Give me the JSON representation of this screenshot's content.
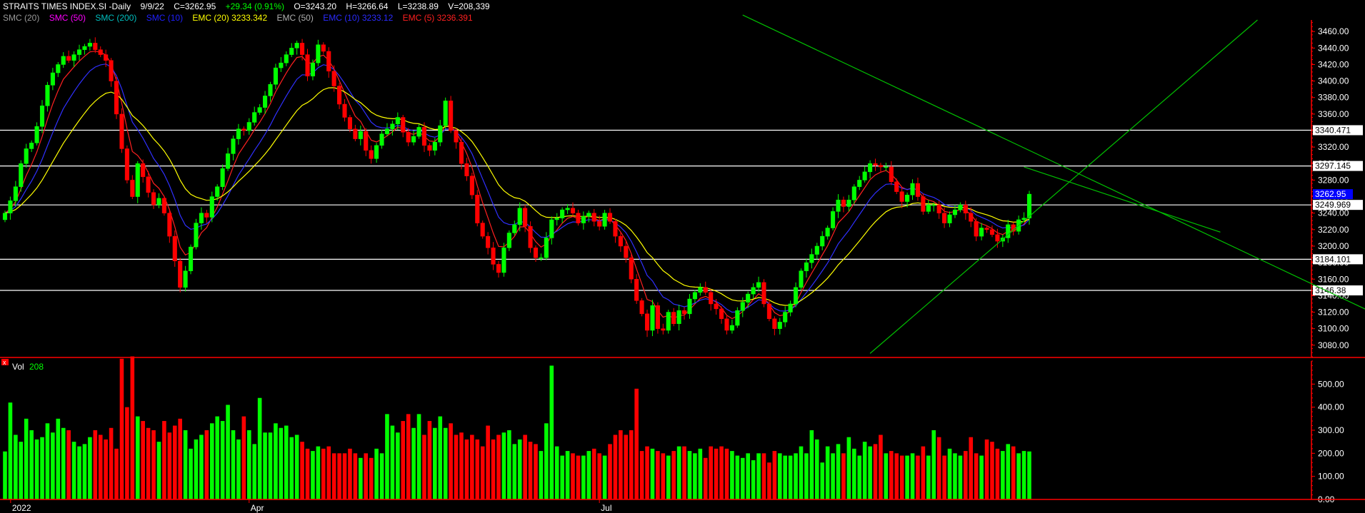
{
  "header": {
    "row1": [
      {
        "text": "STRAITS TIMES INDEX.SI -Daily",
        "color": "#ffffff"
      },
      {
        "text": "9/9/22",
        "color": "#ffffff"
      },
      {
        "text": "C=3262.95",
        "color": "#ffffff"
      },
      {
        "text": "+29.34 (0.91%)",
        "color": "#00ff00"
      },
      {
        "text": "O=3243.20",
        "color": "#ffffff"
      },
      {
        "text": "H=3266.64",
        "color": "#ffffff"
      },
      {
        "text": "L=3238.89",
        "color": "#ffffff"
      },
      {
        "text": "V=208,339",
        "color": "#ffffff"
      }
    ],
    "row2": [
      {
        "text": "SMC (20)",
        "color": "#9a9a9a"
      },
      {
        "text": "SMC (50)",
        "color": "#ff00ff"
      },
      {
        "text": "SMC (200)",
        "color": "#00bfbf"
      },
      {
        "text": "SMC (10)",
        "color": "#2020ff"
      },
      {
        "text": "EMC (20) 3233.342",
        "color": "#ffff00"
      },
      {
        "text": "EMC (50)",
        "color": "#b0b0b0"
      },
      {
        "text": "EMC (10) 3233.12",
        "color": "#2b2bff"
      },
      {
        "text": "EMC (5) 3236.391",
        "color": "#ff2020"
      }
    ],
    "vol_label": "Vol",
    "vol_value": "208"
  },
  "colors": {
    "up": "#00ff00",
    "down": "#ff0000",
    "ema5": "#ff2020",
    "ema10": "#3030ff",
    "ema20": "#ffff00",
    "trendline": "#00c000",
    "hline": "#ffffff",
    "axis": "#ff0000"
  },
  "chart_data": [
    {
      "type": "candlestick",
      "title": "STRAITS TIMES INDEX.SI -Daily",
      "ylim": [
        3066,
        3474
      ],
      "y_ticks": [
        3080,
        3100,
        3120,
        3140,
        3160,
        3180,
        3200,
        3220,
        3240,
        3260,
        3280,
        3300,
        3320,
        3340,
        3360,
        3380,
        3400,
        3420,
        3440,
        3460
      ],
      "x_labels": [
        "2022",
        "Apr",
        "Jul"
      ],
      "closes": [
        3240,
        3255,
        3272,
        3300,
        3318,
        3325,
        3345,
        3370,
        3395,
        3410,
        3420,
        3430,
        3425,
        3432,
        3438,
        3442,
        3446,
        3438,
        3432,
        3425,
        3400,
        3360,
        3318,
        3280,
        3260,
        3300,
        3284,
        3265,
        3250,
        3258,
        3240,
        3212,
        3182,
        3150,
        3170,
        3199,
        3228,
        3240,
        3235,
        3260,
        3272,
        3294,
        3312,
        3330,
        3342,
        3340,
        3350,
        3362,
        3368,
        3382,
        3396,
        3416,
        3422,
        3432,
        3440,
        3446,
        3432,
        3406,
        3422,
        3444,
        3436,
        3412,
        3394,
        3372,
        3356,
        3342,
        3330,
        3339,
        3316,
        3306,
        3322,
        3336,
        3342,
        3348,
        3356,
        3338,
        3326,
        3333,
        3344,
        3322,
        3316,
        3326,
        3346,
        3376,
        3340,
        3326,
        3300,
        3285,
        3262,
        3228,
        3212,
        3198,
        3178,
        3168,
        3198,
        3216,
        3226,
        3246,
        3224,
        3198,
        3186,
        3186,
        3210,
        3232,
        3234,
        3244,
        3246,
        3240,
        3228,
        3236,
        3240,
        3230,
        3224,
        3240,
        3230,
        3212,
        3200,
        3186,
        3160,
        3134,
        3118,
        3098,
        3128,
        3100,
        3098,
        3120,
        3106,
        3122,
        3118,
        3136,
        3144,
        3150,
        3144,
        3130,
        3124,
        3112,
        3098,
        3104,
        3122,
        3132,
        3142,
        3150,
        3156,
        3130,
        3112,
        3100,
        3108,
        3120,
        3130,
        3150,
        3170,
        3180,
        3190,
        3200,
        3212,
        3222,
        3242,
        3256,
        3248,
        3256,
        3272,
        3280,
        3290,
        3300,
        3298,
        3296,
        3296,
        3278,
        3266,
        3254,
        3262,
        3276,
        3260,
        3242,
        3250,
        3250,
        3240,
        3228,
        3238,
        3244,
        3250,
        3240,
        3230,
        3212,
        3222,
        3220,
        3214,
        3206,
        3210,
        3226,
        3218,
        3232,
        3234,
        3263
      ]
    },
    {
      "type": "bar",
      "title": "Vol",
      "ylim": [
        0,
        600
      ],
      "y_ticks": [
        0,
        100,
        200,
        300,
        400,
        500
      ],
      "values": [
        208,
        420,
        280,
        250,
        350,
        300,
        260,
        270,
        330,
        290,
        350,
        310,
        300,
        250,
        230,
        240,
        270,
        300,
        280,
        260,
        310,
        220,
        610,
        400,
        620,
        360,
        340,
        310,
        300,
        250,
        340,
        290,
        320,
        350,
        300,
        220,
        260,
        280,
        300,
        330,
        360,
        340,
        410,
        300,
        260,
        360,
        300,
        240,
        440,
        290,
        290,
        330,
        310,
        320,
        270,
        280,
        250,
        220,
        210,
        230,
        220,
        230,
        200,
        200,
        200,
        220,
        200,
        180,
        200,
        180,
        220,
        200,
        370,
        320,
        290,
        340,
        370,
        310,
        370,
        280,
        340,
        310,
        360,
        310,
        330,
        280,
        290,
        260,
        280,
        260,
        230,
        320,
        260,
        280,
        290,
        300,
        240,
        260,
        280,
        250,
        240,
        210,
        330,
        580,
        230,
        190,
        210,
        200,
        190,
        190,
        210,
        220,
        200,
        190,
        240,
        280,
        300,
        280,
        300,
        480,
        210,
        230,
        220,
        210,
        200,
        190,
        210,
        230,
        230,
        210,
        200,
        220,
        180,
        230,
        220,
        230,
        220,
        210,
        190,
        180,
        200,
        170,
        200,
        200,
        160,
        210,
        200,
        190,
        190,
        200,
        230,
        200,
        300,
        260,
        160,
        230,
        200,
        240,
        200,
        270,
        220,
        190,
        250,
        230,
        240,
        280,
        200,
        210,
        200,
        190,
        190,
        200,
        190,
        230,
        190,
        300,
        270,
        190,
        220,
        200,
        190,
        210,
        270,
        200,
        190,
        260,
        250,
        220,
        210,
        240,
        230,
        200,
        210,
        208
      ]
    }
  ],
  "h_levels": [
    {
      "value": 3340.471,
      "label": "3340.471"
    },
    {
      "value": 3297.145,
      "label": "3297.145"
    },
    {
      "value": 3249.969,
      "label": "3249.969"
    },
    {
      "value": 3184.101,
      "label": "3184.101"
    },
    {
      "value": 3146.38,
      "label": "3146.38"
    }
  ],
  "price_tag": {
    "value": 3262.95,
    "label": "3262.95"
  },
  "trendlines": [
    {
      "from": [
        139,
        3480
      ],
      "to": [
        274,
        3070
      ]
    },
    {
      "from": [
        163,
        3070
      ],
      "to": [
        236,
        3474
      ]
    },
    {
      "from": [
        192,
        3296
      ],
      "to": [
        229,
        3217
      ]
    }
  ]
}
